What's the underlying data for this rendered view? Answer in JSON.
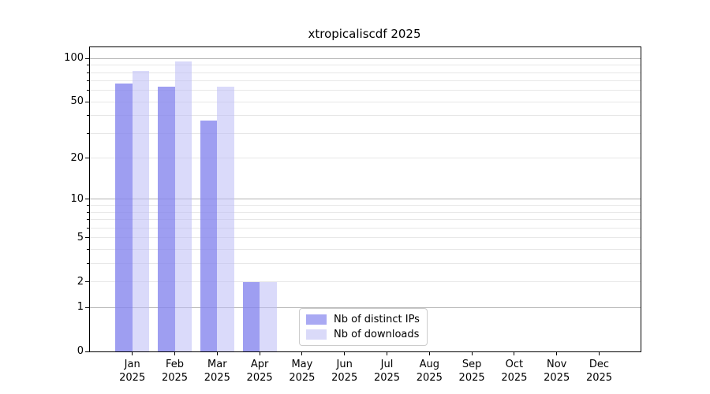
{
  "chart_data": {
    "type": "bar",
    "title": "xtropicaliscdf 2025",
    "year_label": "2025",
    "categories": [
      "Jan",
      "Feb",
      "Mar",
      "Apr",
      "May",
      "Jun",
      "Jul",
      "Aug",
      "Sep",
      "Oct",
      "Nov",
      "Dec"
    ],
    "series": [
      {
        "name": "Nb of distinct IPs",
        "legend_color": "#a9a9f3",
        "bar_fill": "rgba(134,134,238,0.80)",
        "values": [
          67,
          64,
          37,
          2,
          0,
          0,
          0,
          0,
          0,
          0,
          0,
          0
        ]
      },
      {
        "name": "Nb of downloads",
        "legend_color": "#dadaf9",
        "bar_fill": "rgba(188,188,246,0.55)",
        "values": [
          82,
          95,
          64,
          2,
          0,
          0,
          0,
          0,
          0,
          0,
          0,
          0
        ]
      }
    ],
    "yscale": "log1p",
    "ylim": [
      0,
      120
    ],
    "y_labeled_ticks": [
      100,
      50,
      20,
      10,
      5,
      2,
      1,
      0
    ],
    "y_major_gridlines": [
      100,
      10,
      1
    ],
    "y_minor_gridlines": [
      90,
      80,
      70,
      60,
      50,
      40,
      30,
      20,
      9,
      8,
      7,
      6,
      5,
      4,
      3,
      2
    ],
    "grid": "on",
    "legend_position": "lower center-left inside plot",
    "colors": {
      "major_grid": "#b3b3b3",
      "minor_grid": "#e7e7e7",
      "axis": "#000000",
      "background": "#ffffff"
    }
  }
}
